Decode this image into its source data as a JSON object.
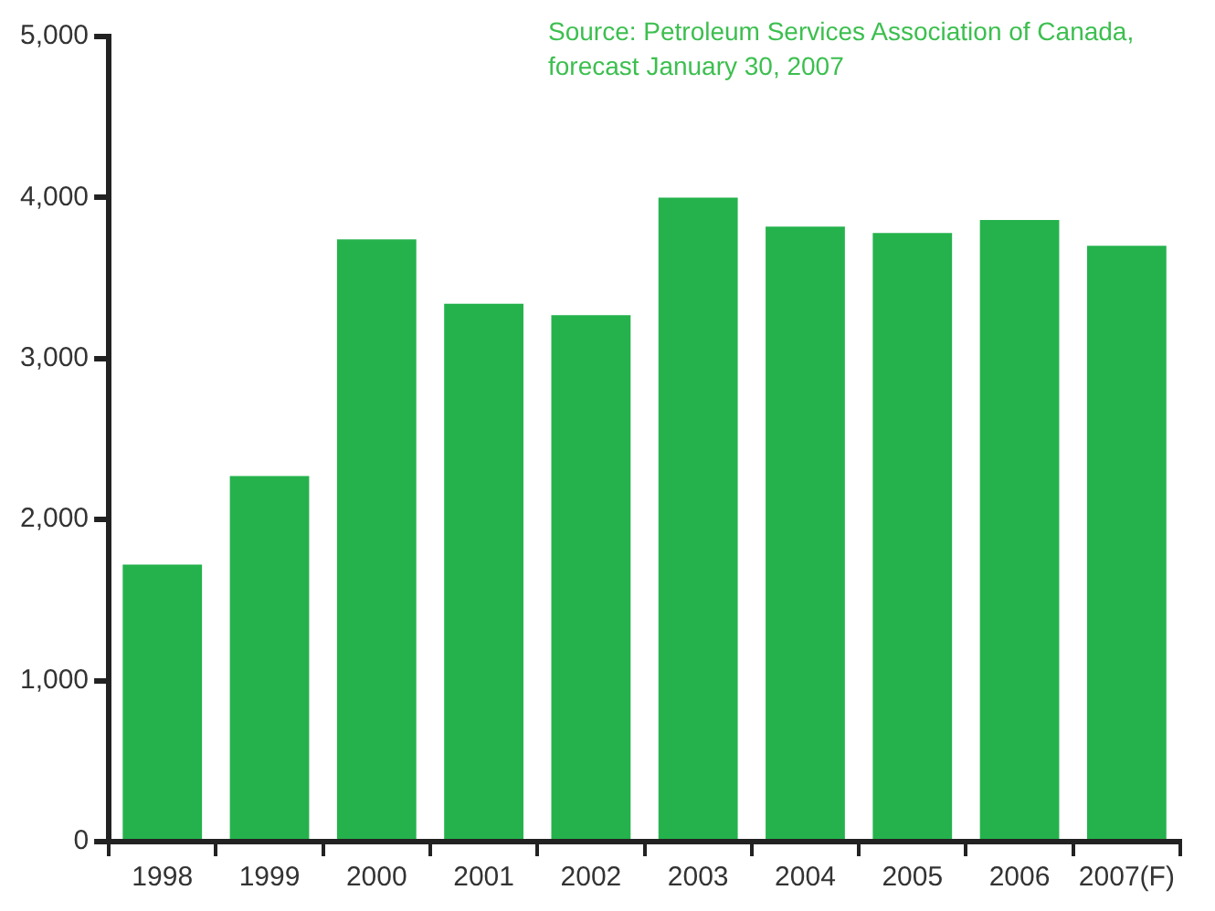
{
  "chart_data": {
    "type": "bar",
    "categories": [
      "1998",
      "1999",
      "2000",
      "2001",
      "2002",
      "2003",
      "2004",
      "2005",
      "2006",
      "2007(F)"
    ],
    "values": [
      1720,
      2270,
      3740,
      3340,
      3270,
      4000,
      3820,
      3780,
      3860,
      3700
    ],
    "color": "#25b24c",
    "ylim": [
      0,
      5000
    ],
    "yticks": [
      {
        "value": 0,
        "label": "0"
      },
      {
        "value": 1000,
        "label": "1,000"
      },
      {
        "value": 2000,
        "label": "2,000"
      },
      {
        "value": 3000,
        "label": "3,000"
      },
      {
        "value": 4000,
        "label": "4,000"
      },
      {
        "value": 5000,
        "label": "5,000"
      }
    ],
    "grid": false,
    "legend": false,
    "annotations": [
      "Source: Petroleum Services Association of Canada, forecast January 30, 2007"
    ]
  }
}
